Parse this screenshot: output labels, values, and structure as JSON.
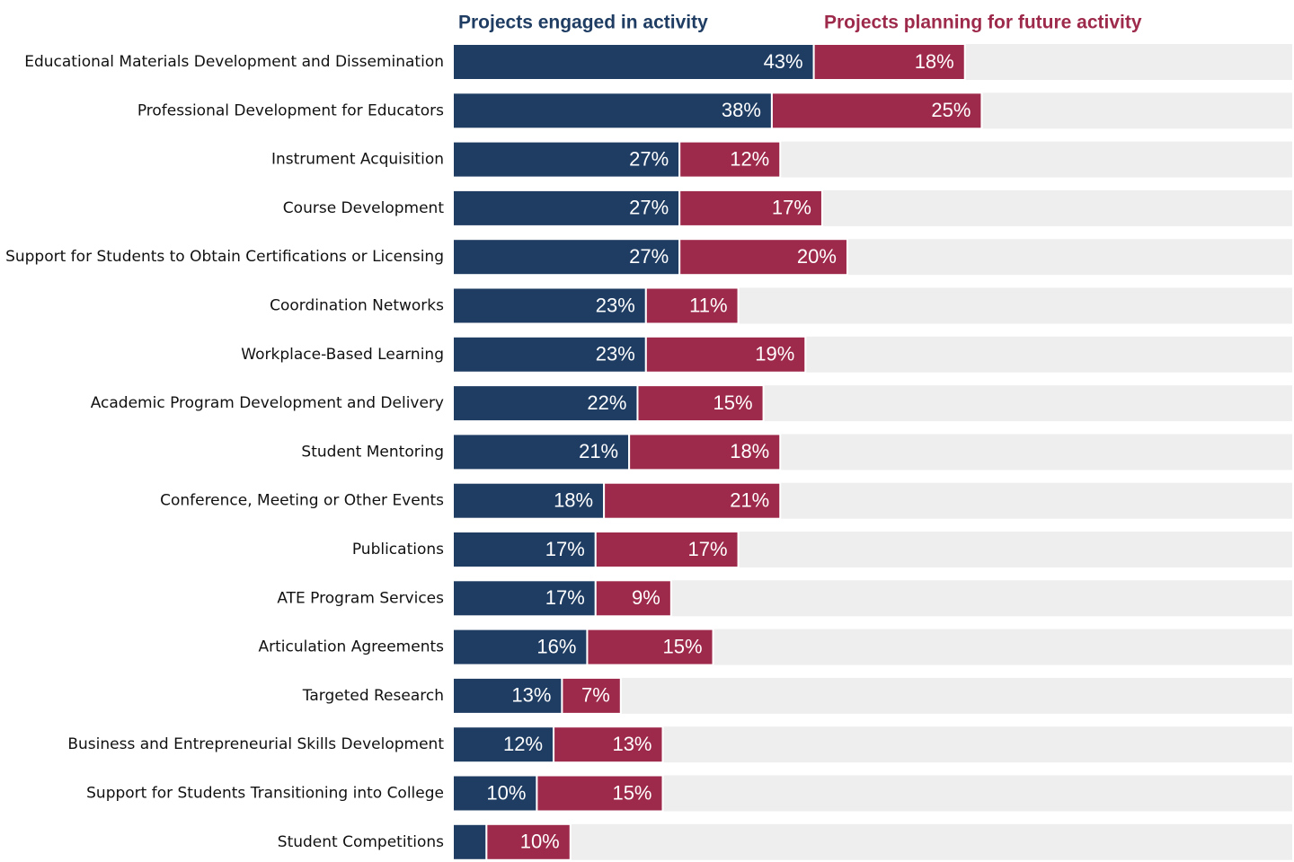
{
  "chart_data": {
    "type": "stacked-barh",
    "categories": [
      "Educational Materials Development and Dissemination",
      "Professional Development for Educators",
      "Instrument Acquisition",
      "Course Development",
      "Support for Students to Obtain Certifications or Licensing",
      "Coordination Networks",
      "Workplace-Based Learning",
      "Academic Program Development and Delivery",
      "Student Mentoring",
      "Conference, Meeting or Other Events",
      "Publications",
      "ATE Program Services",
      "Articulation Agreements",
      "Targeted Research",
      "Business and Entrepreneurial Skills Development",
      "Support for Students Transitioning into College",
      "Student Competitions"
    ],
    "series": [
      {
        "name": "Projects engaged in activity",
        "color": "#1f3d63",
        "values": [
          43,
          38,
          27,
          27,
          27,
          23,
          23,
          22,
          21,
          18,
          17,
          17,
          16,
          13,
          12,
          10,
          4
        ],
        "value_labels": [
          "43%",
          "38%",
          "27%",
          "27%",
          "27%",
          "23%",
          "23%",
          "22%",
          "21%",
          "18%",
          "17%",
          "17%",
          "16%",
          "13%",
          "12%",
          "10%",
          null
        ]
      },
      {
        "name": "Projects planning for future activity",
        "color": "#9e2a4b",
        "values": [
          18,
          25,
          12,
          17,
          20,
          11,
          19,
          15,
          18,
          21,
          17,
          9,
          15,
          7,
          13,
          15,
          10
        ],
        "value_labels": [
          "18%",
          "25%",
          "12%",
          "17%",
          "20%",
          "11%",
          "19%",
          "15%",
          "18%",
          "21%",
          "17%",
          "9%",
          "15%",
          "7%",
          "13%",
          "15%",
          "10%"
        ]
      }
    ],
    "xlim": [
      0,
      100
    ],
    "track_color": "#eeeeee"
  }
}
